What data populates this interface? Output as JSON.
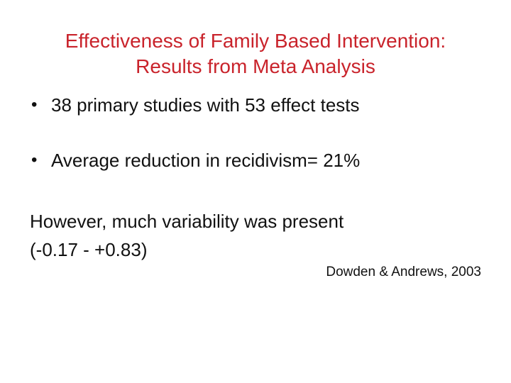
{
  "slide": {
    "title": {
      "line1": "Effectiveness of Family Based Intervention:",
      "line2": "Results from Meta Analysis"
    },
    "bullet_glyph": "•",
    "bullets": [
      "38 primary studies with 53 effect tests",
      "Average reduction in recidivism= 21%"
    ],
    "paragraph": {
      "line1": "However, much variability was present",
      "line2": "(-0.17 - +0.83)"
    },
    "attribution": "Dowden & Andrews, 2003"
  },
  "colors": {
    "title": "#c9232b",
    "body": "#111111",
    "background": "#ffffff"
  }
}
